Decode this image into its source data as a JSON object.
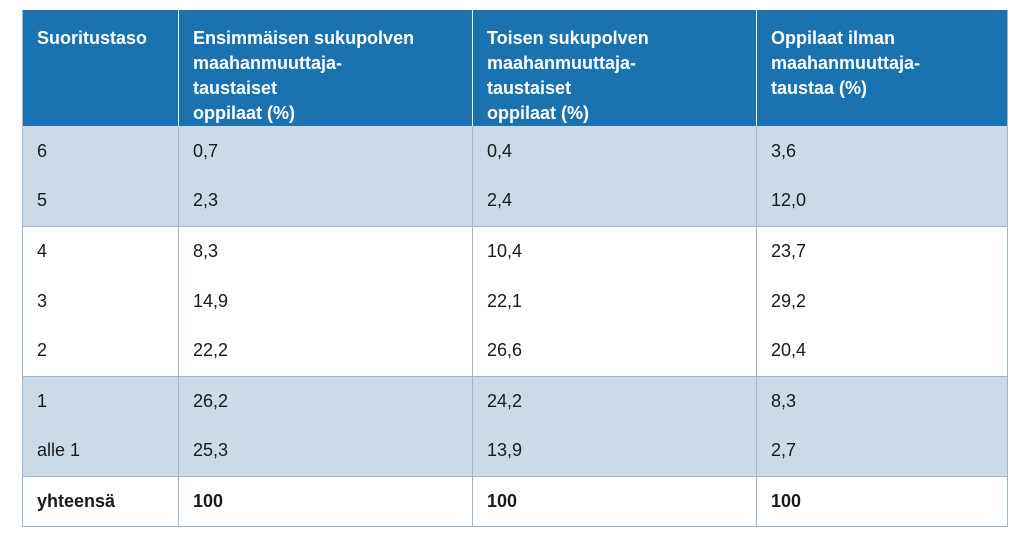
{
  "table": {
    "headers": [
      [
        "Suoritustaso"
      ],
      [
        "Ensimmäisen sukupolven",
        "maahanmuuttaja-",
        "taustaiset",
        "oppilaat (%)"
      ],
      [
        "Toisen sukupolven",
        "maahanmuuttaja-",
        "taustaiset",
        "oppilaat (%)"
      ],
      [
        "Oppilaat ilman",
        "maahanmuuttaja-",
        "taustaa (%)"
      ]
    ],
    "rows": [
      [
        "6",
        "0,7",
        "0,4",
        "3,6"
      ],
      [
        "5",
        "2,3",
        "2,4",
        "12,0"
      ],
      [
        "4",
        "8,3",
        "10,4",
        "23,7"
      ],
      [
        "3",
        "14,9",
        "22,1",
        "29,2"
      ],
      [
        "2",
        "22,2",
        "26,6",
        "20,4"
      ],
      [
        "1",
        "26,2",
        "24,2",
        "8,3"
      ],
      [
        "alle 1",
        "25,3",
        "13,9",
        "2,7"
      ],
      [
        "yhteensä",
        "100",
        "100",
        "100"
      ]
    ]
  },
  "colors": {
    "header_bg": "#1a72b0",
    "shade_bg": "#ccdae8",
    "border": "#9fb7cf"
  }
}
